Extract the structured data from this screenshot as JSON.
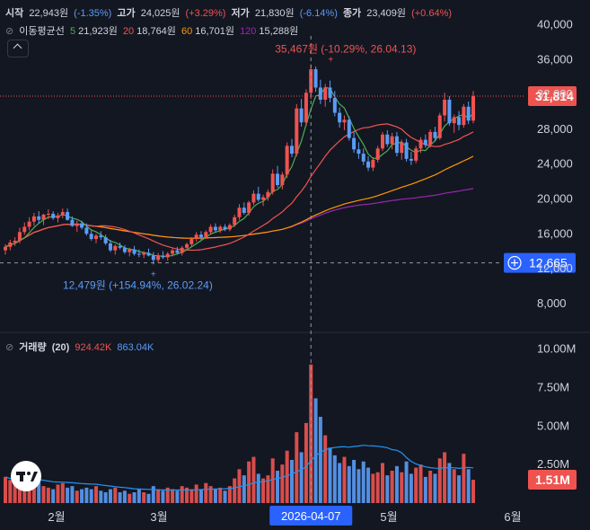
{
  "legend": {
    "open_label": "시작",
    "open_value": "22,943원",
    "open_change": "(-1.35%)",
    "high_label": "고가",
    "high_value": "24,025원",
    "high_change": "(+3.29%)",
    "low_label": "저가",
    "low_value": "21,830원",
    "low_change": "(-6.14%)",
    "close_label": "종가",
    "close_value": "23,409원",
    "close_change": "(+0.64%)"
  },
  "ma_legend": {
    "title": "이동평균선",
    "items": [
      {
        "period": "5",
        "value": "21,923원",
        "color": "#4caf50"
      },
      {
        "period": "20",
        "value": "18,764원",
        "color": "#ef5350"
      },
      {
        "period": "60",
        "value": "16,701원",
        "color": "#ff9800"
      },
      {
        "period": "120",
        "value": "15,288원",
        "color": "#9c27b0"
      }
    ]
  },
  "volume_legend": {
    "title": "거래량",
    "period": "(20)",
    "value_up": "924.42K",
    "value_dn": "863.04K"
  },
  "colors": {
    "up": "#ef5350",
    "down": "#5b9cf6",
    "background": "#131722",
    "grid_text": "#d1d4dc"
  },
  "chart_data": {
    "type": "candlestick",
    "price_axis": {
      "ticks": [
        "40,000",
        "36,000",
        "32,000",
        "28,000",
        "24,000",
        "20,000",
        "16,000",
        "12,000",
        "8,000"
      ],
      "ylim": [
        5500,
        41000
      ]
    },
    "volume_axis": {
      "ticks": [
        "10.00M",
        "7.50M",
        "5.00M",
        "2.50M"
      ],
      "ylim": [
        0,
        10500000
      ]
    },
    "x_ticks": [
      "2월",
      "3월",
      "5월",
      "6월"
    ],
    "crosshair_date": "2026-04-07",
    "last_price_label": "31,814",
    "crosshair_price_label": "12,665",
    "last_volume_label": "1.51M",
    "annotations": {
      "high": "35,467원 (-10.29%, 26.04.13)",
      "low": "12,479원 (+154.94%, 26.02.24)"
    },
    "candles": [
      [
        14100,
        14800,
        13600,
        14500
      ],
      [
        14500,
        15300,
        14100,
        15000
      ],
      [
        15000,
        15600,
        14600,
        15200
      ],
      [
        15200,
        16700,
        14900,
        16200
      ],
      [
        16200,
        17300,
        15900,
        16800
      ],
      [
        16800,
        17900,
        16400,
        17400
      ],
      [
        17400,
        18400,
        16900,
        18000
      ],
      [
        18000,
        18600,
        17200,
        17600
      ],
      [
        17600,
        18300,
        17000,
        18200
      ],
      [
        18200,
        18800,
        17700,
        18300
      ],
      [
        18300,
        18600,
        17600,
        17800
      ],
      [
        17800,
        18400,
        17300,
        18100
      ],
      [
        18100,
        18900,
        17800,
        18500
      ],
      [
        18500,
        18900,
        17500,
        17600
      ],
      [
        17600,
        18000,
        16800,
        16900
      ],
      [
        16900,
        17500,
        16200,
        17200
      ],
      [
        17200,
        17500,
        16500,
        16700
      ],
      [
        16700,
        17200,
        15800,
        16000
      ],
      [
        16000,
        16400,
        15200,
        15400
      ],
      [
        15400,
        16000,
        14900,
        15800
      ],
      [
        15800,
        16300,
        15300,
        15600
      ],
      [
        15600,
        15900,
        14700,
        14900
      ],
      [
        14900,
        15300,
        13900,
        14100
      ],
      [
        14100,
        14800,
        13600,
        14600
      ],
      [
        14600,
        15000,
        14200,
        14400
      ],
      [
        14400,
        14700,
        13700,
        13900
      ],
      [
        13900,
        14400,
        13400,
        14200
      ],
      [
        14200,
        14600,
        13500,
        13700
      ],
      [
        13700,
        14200,
        13300,
        13600
      ],
      [
        13600,
        14000,
        13200,
        13800
      ],
      [
        13800,
        14300,
        13400,
        13500
      ],
      [
        13500,
        13900,
        12479,
        13000
      ],
      [
        13000,
        13800,
        12700,
        13500
      ],
      [
        13500,
        14000,
        13100,
        13300
      ],
      [
        13300,
        13900,
        12900,
        13700
      ],
      [
        13700,
        14300,
        13400,
        14100
      ],
      [
        14100,
        14500,
        13600,
        13800
      ],
      [
        13800,
        14600,
        13500,
        14400
      ],
      [
        14400,
        15000,
        14100,
        14800
      ],
      [
        14800,
        15600,
        14500,
        15400
      ],
      [
        15400,
        16200,
        15100,
        15900
      ],
      [
        15900,
        16300,
        15300,
        15600
      ],
      [
        15600,
        16400,
        15400,
        16200
      ],
      [
        16200,
        17100,
        15900,
        16800
      ],
      [
        16800,
        17200,
        16200,
        16400
      ],
      [
        16400,
        17000,
        16100,
        16800
      ],
      [
        16800,
        17100,
        16300,
        16500
      ],
      [
        16500,
        17200,
        16300,
        17000
      ],
      [
        17000,
        18200,
        16800,
        17900
      ],
      [
        17900,
        19400,
        17600,
        19000
      ],
      [
        19000,
        19600,
        18200,
        18400
      ],
      [
        18400,
        19800,
        18100,
        19600
      ],
      [
        19600,
        21000,
        19300,
        20600
      ],
      [
        20600,
        21400,
        19700,
        19900
      ],
      [
        19900,
        20500,
        19200,
        20200
      ],
      [
        20200,
        21100,
        19800,
        20800
      ],
      [
        20800,
        23400,
        20500,
        22900
      ],
      [
        22900,
        23800,
        21300,
        21600
      ],
      [
        21600,
        23100,
        21100,
        22800
      ],
      [
        22800,
        26500,
        22400,
        26100
      ],
      [
        26100,
        26900,
        24800,
        25200
      ],
      [
        25200,
        30900,
        24900,
        30400
      ],
      [
        30400,
        31500,
        28300,
        28800
      ],
      [
        28800,
        32600,
        28400,
        32200
      ],
      [
        32200,
        35467,
        31500,
        34900
      ],
      [
        34900,
        35200,
        32300,
        32800
      ],
      [
        32800,
        33700,
        30900,
        31400
      ],
      [
        31400,
        33200,
        30600,
        32800
      ],
      [
        32800,
        33600,
        31100,
        31600
      ],
      [
        31600,
        32400,
        29500,
        29900
      ],
      [
        29900,
        30500,
        28200,
        28800
      ],
      [
        28800,
        29600,
        27900,
        29100
      ],
      [
        29100,
        29500,
        26700,
        27000
      ],
      [
        27000,
        27800,
        25300,
        25700
      ],
      [
        25700,
        26500,
        24600,
        25200
      ],
      [
        25200,
        25800,
        23900,
        24300
      ],
      [
        24300,
        24900,
        23200,
        23600
      ],
      [
        23600,
        24800,
        23200,
        24500
      ],
      [
        24500,
        26100,
        24200,
        25800
      ],
      [
        25800,
        27700,
        25500,
        27400
      ],
      [
        27400,
        27900,
        26000,
        26300
      ],
      [
        26300,
        27600,
        25700,
        27200
      ],
      [
        27200,
        27700,
        24900,
        25300
      ],
      [
        25300,
        26800,
        24500,
        26500
      ],
      [
        26500,
        26900,
        24300,
        24600
      ],
      [
        24600,
        25400,
        23900,
        24400
      ],
      [
        24400,
        26100,
        24100,
        25800
      ],
      [
        25800,
        27100,
        25300,
        26800
      ],
      [
        26800,
        27400,
        25900,
        26200
      ],
      [
        26200,
        28000,
        25900,
        27700
      ],
      [
        27700,
        28300,
        26600,
        27000
      ],
      [
        27000,
        29900,
        26800,
        29600
      ],
      [
        29600,
        32200,
        28900,
        31400
      ],
      [
        31400,
        31800,
        28400,
        28700
      ],
      [
        28700,
        29700,
        27600,
        29400
      ],
      [
        29400,
        30100,
        27900,
        28500
      ],
      [
        28500,
        30900,
        28200,
        30600
      ],
      [
        30600,
        31200,
        28600,
        29000
      ],
      [
        29000,
        32400,
        28700,
        31814
      ]
    ],
    "volumes": [
      1.7,
      1.5,
      1.6,
      1.9,
      1.4,
      1.2,
      1.3,
      1.6,
      1.1,
      1.0,
      0.9,
      1.2,
      1.3,
      1.0,
      1.1,
      0.8,
      0.9,
      1.0,
      0.9,
      1.1,
      0.8,
      0.7,
      0.9,
      1.0,
      0.7,
      0.8,
      0.6,
      0.7,
      0.9,
      0.7,
      0.6,
      1.1,
      0.9,
      0.8,
      1.0,
      0.9,
      0.8,
      1.1,
      1.0,
      0.9,
      1.2,
      0.9,
      1.3,
      1.1,
      0.9,
      1.0,
      0.8,
      1.1,
      1.6,
      2.2,
      1.8,
      2.7,
      3.0,
      1.9,
      1.6,
      1.8,
      2.9,
      2.1,
      2.5,
      3.4,
      2.8,
      4.6,
      3.3,
      5.2,
      9.0,
      6.8,
      5.6,
      4.4,
      3.6,
      3.1,
      2.6,
      3.0,
      2.4,
      2.8,
      2.2,
      2.7,
      2.3,
      1.9,
      2.0,
      2.6,
      1.8,
      2.1,
      2.4,
      2.0,
      2.7,
      1.9,
      2.3,
      2.5,
      1.7,
      2.1,
      1.9,
      2.9,
      3.3,
      2.6,
      2.2,
      1.8,
      3.2,
      2.2,
      1.51
    ]
  }
}
